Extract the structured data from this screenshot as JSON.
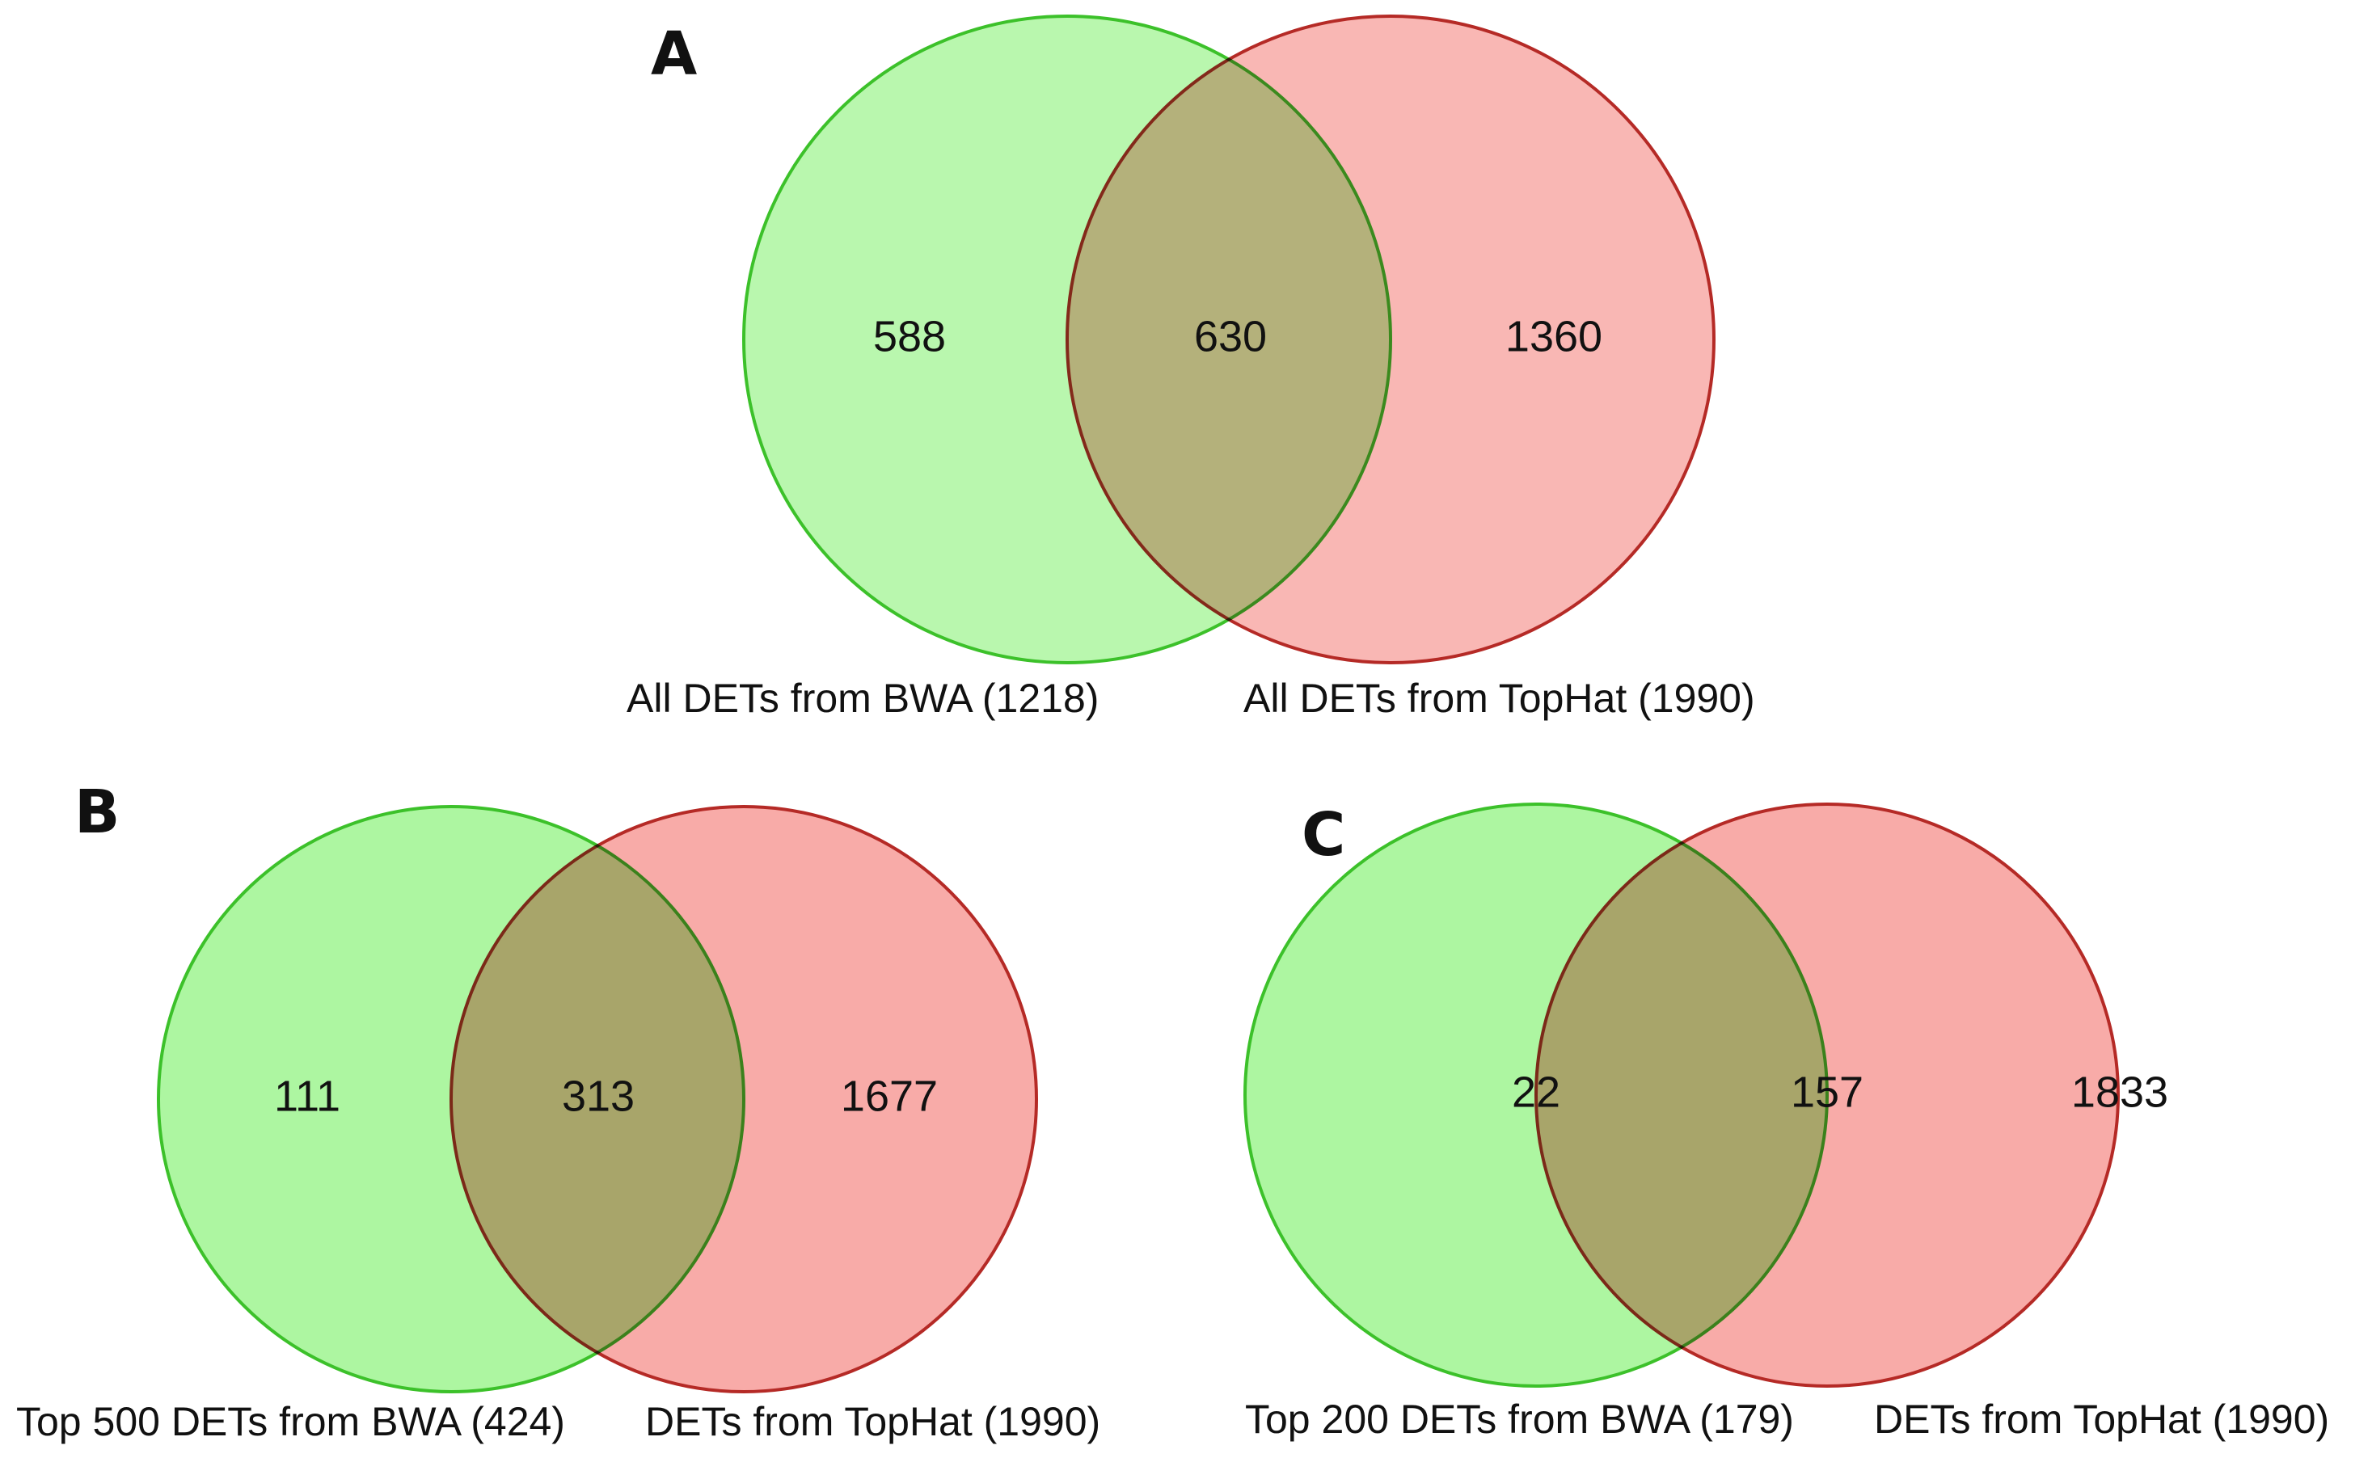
{
  "colors": {
    "left_fill": "#8ef27d",
    "left_stroke": "#3cc12a",
    "right_fill": "#f58a86",
    "right_stroke": "#b52a26",
    "overlap_hint": "#9aa532"
  },
  "panels": [
    {
      "letter": "A",
      "counts": {
        "left_only": "588",
        "both": "630",
        "right_only": "1360"
      },
      "left_label": "All DETs from BWA (1218)",
      "right_label": "All DETs from TopHat (1990)"
    },
    {
      "letter": "B",
      "counts": {
        "left_only": "111",
        "both": "313",
        "right_only": "1677"
      },
      "left_label": "Top 500 DETs from BWA (424)",
      "right_label": "DETs from TopHat (1990)"
    },
    {
      "letter": "C",
      "counts": {
        "left_only": "22",
        "both": "157",
        "right_only": "1833"
      },
      "left_label": "Top 200 DETs from BWA (179)",
      "right_label": "DETs from TopHat (1990)"
    }
  ]
}
